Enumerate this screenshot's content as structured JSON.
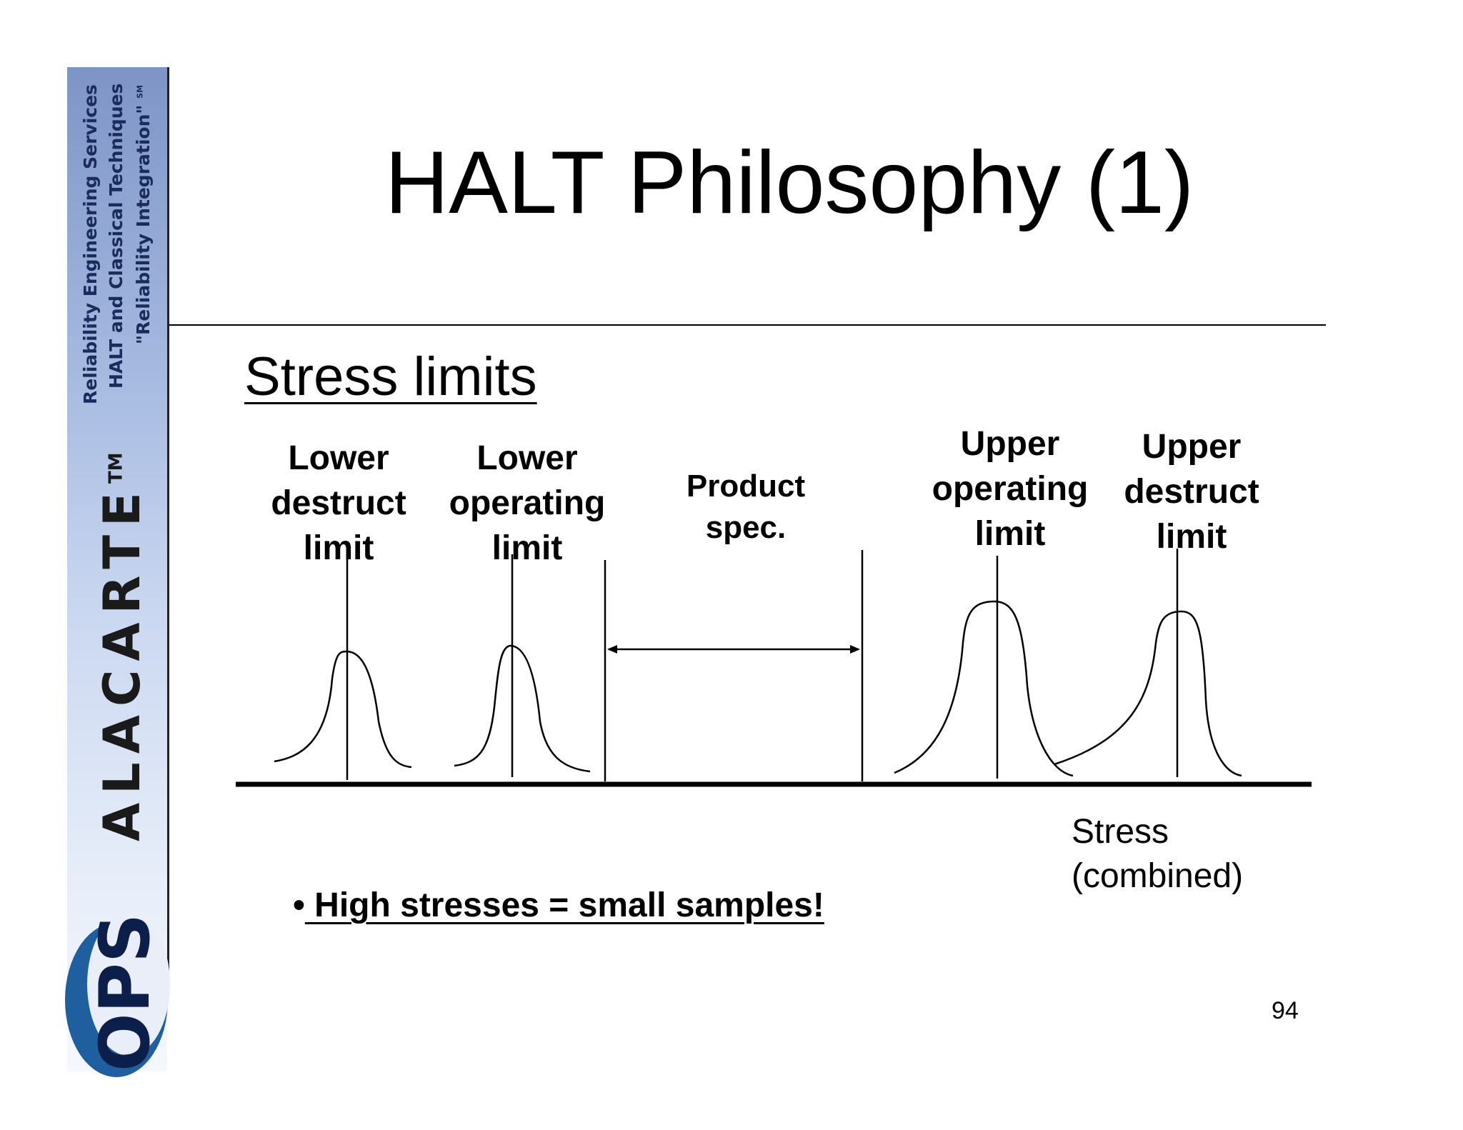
{
  "sidebar": {
    "line1": "Reliability Engineering Services",
    "line2": "HALT and Classical Techniques",
    "line3": "\"Reliability Integration\"",
    "line3_mark": "SM",
    "brand": "ALACARTE",
    "brand_mark": "TM",
    "logo_text": "OPS",
    "logo_colors": {
      "blue": "#1f5fa0",
      "dark": "#0b1f4a",
      "light": "#e9eef8"
    }
  },
  "title": "HALT Philosophy (1)",
  "subtitle": "Stress limits",
  "labels": {
    "lower_destruct": [
      "Lower",
      "destruct",
      "limit"
    ],
    "lower_operating": [
      "Lower",
      "operating",
      "limit"
    ],
    "product_spec": [
      "Product",
      "spec."
    ],
    "upper_operating": [
      "Upper",
      "operating",
      "limit"
    ],
    "upper_destruct": [
      "Upper",
      "destruct",
      "limit"
    ]
  },
  "axis_label": [
    "Stress",
    "(combined)"
  ],
  "bullet": {
    "marker": "•",
    "text": " High stresses = small samples!"
  },
  "page_number": "94"
}
